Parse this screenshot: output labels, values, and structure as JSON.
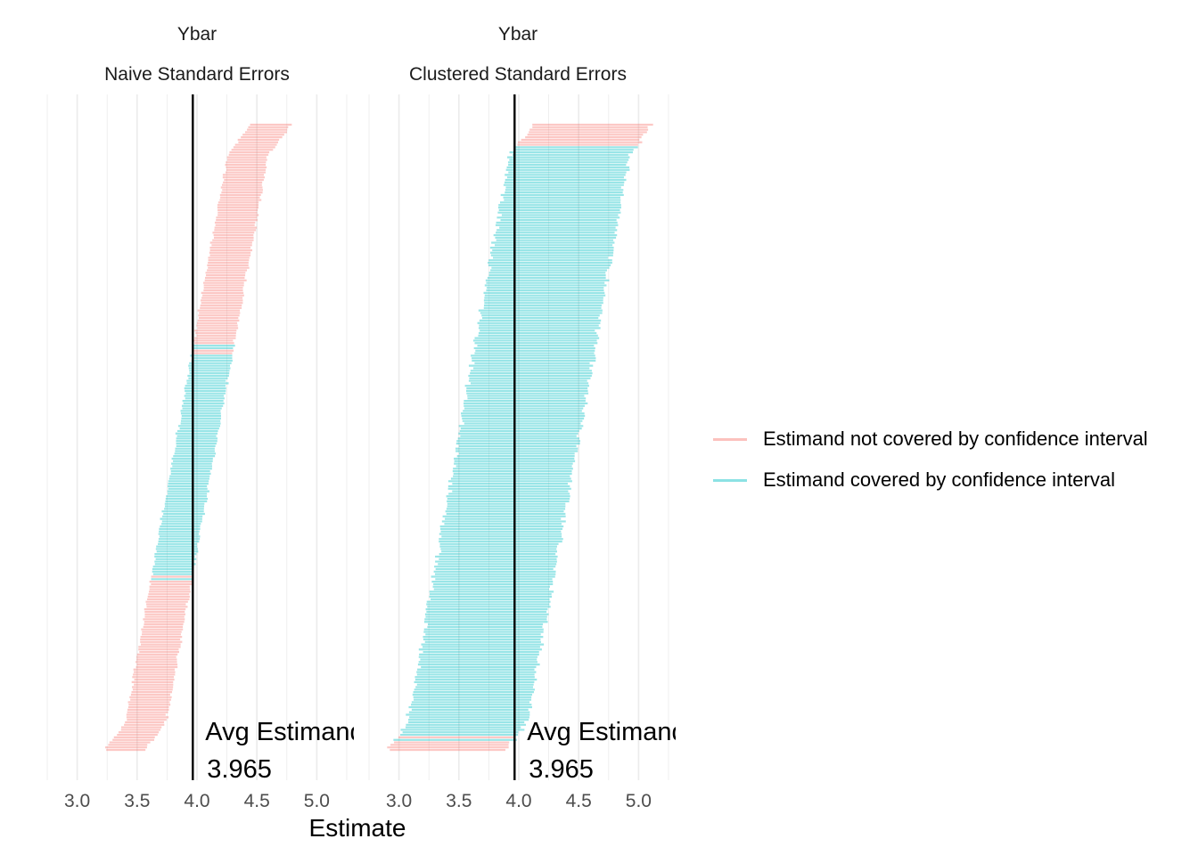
{
  "chart_data": {
    "type": "interval",
    "xlabel": "Estimate",
    "xlim": [
      2.75,
      5.25
    ],
    "x_ticks": [
      "3.0",
      "3.5",
      "4.0",
      "4.5",
      "5.0"
    ],
    "x_tick_values": [
      3.0,
      3.5,
      4.0,
      4.5,
      5.0
    ],
    "estimand": 3.965,
    "annotation": {
      "label": "Avg Estimand",
      "value": "3.965"
    },
    "colors": {
      "not_covered": "#F8766D",
      "covered": "#00BFC4"
    },
    "legend": {
      "position": "right",
      "entries": [
        {
          "key": "not_covered",
          "label": "Estimand not covered by confidence interval"
        },
        {
          "key": "covered",
          "label": "Estimand covered by confidence interval"
        }
      ]
    },
    "n_simulations": 250,
    "estimate_range": [
      3.53,
      4.47
    ],
    "panels": [
      {
        "strip_top": "Ybar",
        "strip_bottom": "Naive Standard Errors",
        "half_width": 0.17,
        "coverage": 0.42
      },
      {
        "strip_top": "Ybar",
        "strip_bottom": "Clustered Standard Errors",
        "half_width": 0.5,
        "coverage": 0.95
      }
    ],
    "grid": true
  }
}
